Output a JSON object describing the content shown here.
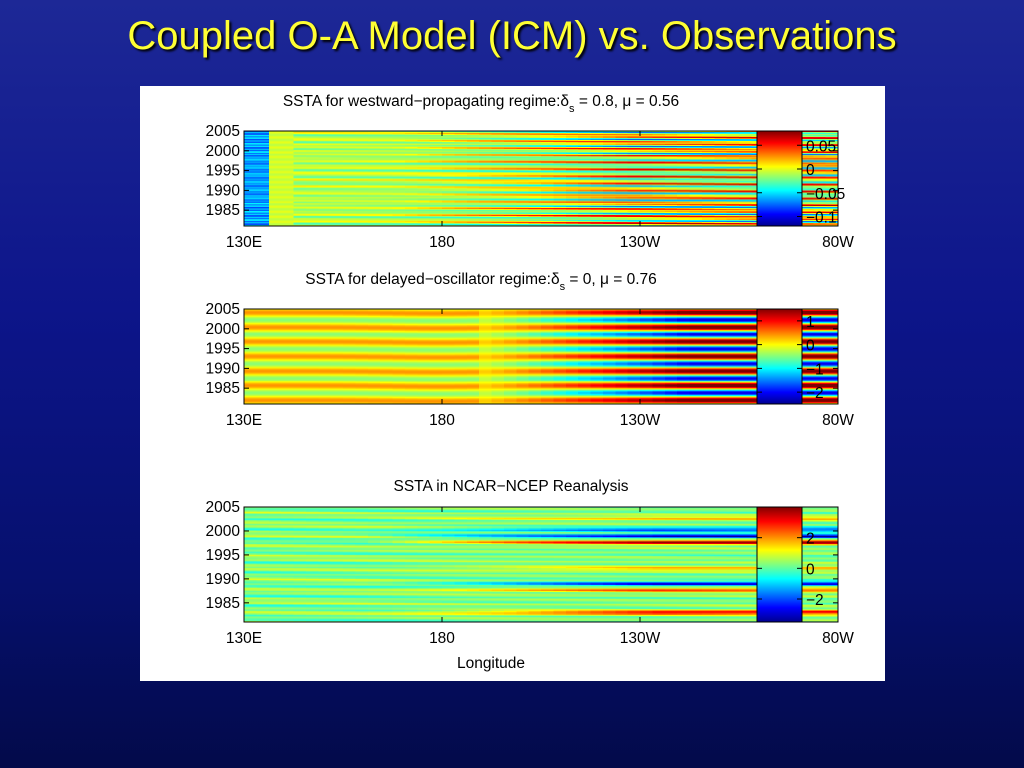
{
  "slide": {
    "title": "Coupled O-A Model (ICM) vs. Observations"
  },
  "chart_data": [
    {
      "type": "heatmap",
      "title": {
        "prefix": "SSTA for westward−propagating regime:",
        "delta": "δ",
        "delta_sub": "s",
        "suffix": " = 0.8, μ = 0.56"
      },
      "x_ticks": [
        "130E",
        "180",
        "130W",
        "80W"
      ],
      "x_tick_values_deg_east": [
        130,
        180,
        230,
        280
      ],
      "y_ticks": [
        "2005",
        "2000",
        "1995",
        "1990",
        "1985"
      ],
      "y_tick_values": [
        2005,
        2000,
        1995,
        1990,
        1985
      ],
      "xlim_deg_east": [
        130,
        280
      ],
      "ylim": [
        1981,
        2005
      ],
      "xlabel": "",
      "colorbar": {
        "ticks": [
          "0.05",
          "0",
          "−0.05",
          "−0.1"
        ],
        "tick_values": [
          0.05,
          0,
          -0.05,
          -0.1
        ],
        "range": [
          -0.12,
          0.08
        ]
      },
      "colormap": "jet",
      "pattern": "westward-propagating"
    },
    {
      "type": "heatmap",
      "title": {
        "prefix": "SSTA for delayed−oscillator regime:",
        "delta": "δ",
        "delta_sub": "s",
        "suffix": " = 0, μ = 0.76"
      },
      "x_ticks": [
        "130E",
        "180",
        "130W",
        "80W"
      ],
      "x_tick_values_deg_east": [
        130,
        180,
        230,
        280
      ],
      "y_ticks": [
        "2005",
        "2000",
        "1995",
        "1990",
        "1985"
      ],
      "y_tick_values": [
        2005,
        2000,
        1995,
        1990,
        1985
      ],
      "xlim_deg_east": [
        130,
        280
      ],
      "ylim": [
        1981,
        2005
      ],
      "xlabel": "",
      "colorbar": {
        "ticks": [
          "1",
          "0",
          "−1",
          "−2"
        ],
        "tick_values": [
          1,
          0,
          -1,
          -2
        ],
        "range": [
          -2.5,
          1.5
        ]
      },
      "colormap": "jet",
      "pattern": "standing-oscillation"
    },
    {
      "type": "heatmap",
      "title": {
        "prefix": "SSTA in NCAR−NCEP Reanalysis",
        "delta": "",
        "delta_sub": "",
        "suffix": ""
      },
      "x_ticks": [
        "130E",
        "180",
        "130W",
        "80W"
      ],
      "x_tick_values_deg_east": [
        130,
        180,
        230,
        280
      ],
      "y_ticks": [
        "2005",
        "2000",
        "1995",
        "1990",
        "1985"
      ],
      "y_tick_values": [
        2005,
        2000,
        1995,
        1990,
        1985
      ],
      "xlim_deg_east": [
        130,
        280
      ],
      "ylim": [
        1981,
        2005
      ],
      "xlabel": "Longitude",
      "colorbar": {
        "ticks": [
          "2",
          "0",
          "−2"
        ],
        "tick_values": [
          2,
          0,
          -2
        ],
        "range": [
          -3.5,
          4
        ]
      },
      "colormap": "jet",
      "pattern": "observed-reanalysis"
    }
  ]
}
